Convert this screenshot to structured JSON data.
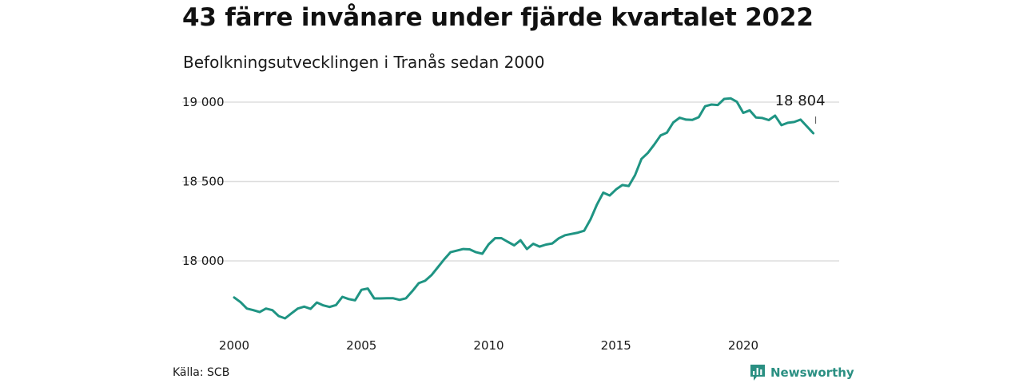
{
  "header": {
    "title": "43 färre invånare under fjärde kvartalet 2022",
    "subtitle": "Befolkningsutvecklingen i Tranås sedan 2000"
  },
  "footer": {
    "source": "Källa: SCB",
    "brand": "Newsworthy",
    "brand_icon": "bar-chart-icon"
  },
  "colors": {
    "line": "#1f9483",
    "grid": "#dddddd",
    "brand": "#2a8f82"
  },
  "chart_data": {
    "type": "line",
    "title": "43 färre invånare under fjärde kvartalet 2022",
    "subtitle": "Befolkningsutvecklingen i Tranås sedan 2000",
    "xlabel": "",
    "ylabel": "",
    "xlim": [
      2000,
      2023
    ],
    "ylim": [
      17600,
      19100
    ],
    "x_ticks": [
      2000,
      2005,
      2010,
      2015,
      2020
    ],
    "y_ticks": [
      18000,
      18500,
      19000
    ],
    "y_tick_labels": [
      "18 000",
      "18 500",
      "19 000"
    ],
    "grid": "horizontal",
    "end_label": "18 804",
    "series": [
      {
        "x": [
          2000.0,
          2000.25,
          2000.5,
          2000.75,
          2001.0,
          2001.25,
          2001.5,
          2001.75,
          2002.0,
          2002.25,
          2002.5,
          2002.75,
          2003.0,
          2003.25,
          2003.5,
          2003.75,
          2004.0,
          2004.25,
          2004.5,
          2004.75,
          2005.0,
          2005.25,
          2005.5,
          2005.75,
          2006.0,
          2006.25,
          2006.5,
          2006.75,
          2007.0,
          2007.25,
          2007.5,
          2007.75,
          2008.0,
          2008.25,
          2008.5,
          2008.75,
          2009.0,
          2009.25,
          2009.5,
          2009.75,
          2010.0,
          2010.25,
          2010.5,
          2010.75,
          2011.0,
          2011.25,
          2011.5,
          2011.75,
          2012.0,
          2012.25,
          2012.5,
          2012.75,
          2013.0,
          2013.25,
          2013.5,
          2013.75,
          2014.0,
          2014.25,
          2014.5,
          2014.75,
          2015.0,
          2015.25,
          2015.5,
          2015.75,
          2016.0,
          2016.25,
          2016.5,
          2016.75,
          2017.0,
          2017.25,
          2017.5,
          2017.75,
          2018.0,
          2018.25,
          2018.5,
          2018.75,
          2019.0,
          2019.25,
          2019.5,
          2019.75,
          2020.0,
          2020.25,
          2020.5,
          2020.75,
          2021.0,
          2021.25,
          2021.5,
          2021.75,
          2022.0,
          2022.25,
          2022.5,
          2022.75
        ],
        "values": [
          17770,
          17740,
          17700,
          17690,
          17678,
          17700,
          17690,
          17653,
          17638,
          17670,
          17700,
          17712,
          17698,
          17738,
          17720,
          17710,
          17722,
          17774,
          17760,
          17752,
          17818,
          17826,
          17764,
          17764,
          17765,
          17765,
          17755,
          17765,
          17810,
          17860,
          17875,
          17910,
          17960,
          18010,
          18055,
          18065,
          18075,
          18073,
          18055,
          18045,
          18105,
          18143,
          18143,
          18120,
          18098,
          18130,
          18075,
          18108,
          18090,
          18103,
          18110,
          18142,
          18162,
          18170,
          18178,
          18190,
          18262,
          18355,
          18430,
          18412,
          18450,
          18478,
          18472,
          18540,
          18642,
          18680,
          18732,
          18790,
          18808,
          18872,
          18902,
          18890,
          18888,
          18905,
          18974,
          18985,
          18982,
          19020,
          19024,
          19002,
          18932,
          18948,
          18903,
          18900,
          18887,
          18915,
          18855,
          18870,
          18875,
          18890,
          18847,
          18804
        ]
      }
    ]
  }
}
